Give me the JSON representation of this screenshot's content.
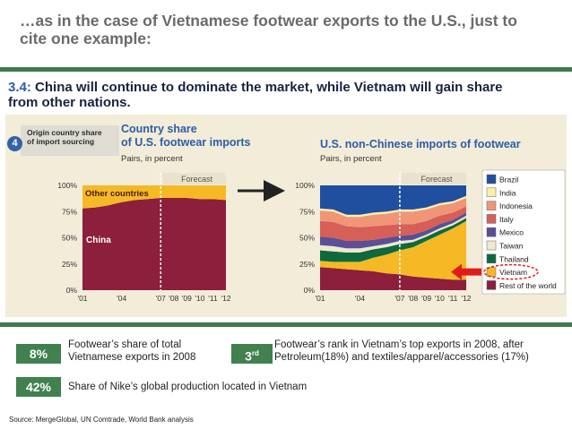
{
  "slide": {
    "title_line1": "…as in the case of Vietnamese footwear exports to the U.S., just to",
    "title_line2": "cite one example:",
    "source": "Source: MergeGlobal, UN Comtrade, World Bank analysis"
  },
  "panel": {
    "number": "3.4:",
    "title_line1": " China will continue to dominate the market, while Vietnam will gain share",
    "title_line2": "from other nations.",
    "badge_number": "4",
    "badge_text_line1": "Origin country share",
    "badge_text_line2": "of import sourcing"
  },
  "chart_data": [
    {
      "type": "area",
      "title_line1": "Country share",
      "title_line2": "of U.S. footwear imports",
      "subtitle": "Pairs, in percent",
      "forecast_label": "Forecast",
      "forecast_start": "'07",
      "x": [
        "'01",
        "'02",
        "'03",
        "'04",
        "'05",
        "'06",
        "'07",
        "'08",
        "'09",
        "'10",
        "'11",
        "'12"
      ],
      "x_tick_labels": [
        "'01",
        "'04",
        "'07",
        "'08",
        "'09",
        "'10",
        "'11",
        "'12"
      ],
      "y_tick_labels": [
        "0%",
        "25%",
        "50%",
        "75%",
        "100%"
      ],
      "ylim": [
        0,
        100
      ],
      "series": [
        {
          "name": "China",
          "values": [
            78,
            79,
            81,
            84,
            86,
            87,
            88,
            88,
            88,
            87,
            87,
            86
          ]
        },
        {
          "name": "Other countries",
          "values": [
            22,
            21,
            19,
            16,
            14,
            13,
            12,
            12,
            12,
            13,
            13,
            14
          ]
        }
      ],
      "colors": [
        "#8c1f3b",
        "#f5b925"
      ]
    },
    {
      "type": "area",
      "title": "U.S. non-Chinese imports of footwear",
      "subtitle": "Pairs, in percent",
      "forecast_label": "Forecast",
      "forecast_start": "'07",
      "x": [
        "'01",
        "'02",
        "'03",
        "'04",
        "'05",
        "'06",
        "'07",
        "'08",
        "'09",
        "'10",
        "'11",
        "'12"
      ],
      "x_tick_labels": [
        "'01",
        "'04",
        "'07",
        "'08",
        "'09",
        "'10",
        "'11",
        "'12"
      ],
      "y_tick_labels": [
        "0%",
        "25%",
        "50%",
        "75%",
        "100%"
      ],
      "ylim": [
        0,
        100
      ],
      "series": [
        {
          "name": "Rest of the world",
          "values": [
            22,
            21,
            20,
            19,
            18,
            16,
            15,
            13,
            12,
            11,
            10,
            10
          ]
        },
        {
          "name": "Vietnam",
          "values": [
            6,
            6,
            7,
            8,
            13,
            18,
            23,
            28,
            35,
            42,
            49,
            56
          ]
        },
        {
          "name": "Thailand",
          "values": [
            10,
            10,
            9,
            9,
            8,
            7,
            6,
            5,
            4,
            4,
            3,
            3
          ]
        },
        {
          "name": "Taiwan",
          "values": [
            5,
            5,
            4,
            4,
            3,
            3,
            3,
            2,
            2,
            2,
            2,
            2
          ]
        },
        {
          "name": "Mexico",
          "values": [
            8,
            8,
            7,
            7,
            6,
            6,
            5,
            5,
            4,
            4,
            3,
            3
          ]
        },
        {
          "name": "Italy",
          "values": [
            15,
            15,
            14,
            13,
            13,
            12,
            11,
            10,
            9,
            8,
            7,
            6
          ]
        },
        {
          "name": "Indonesia",
          "values": [
            10,
            10,
            9,
            10,
            11,
            11,
            12,
            12,
            11,
            10,
            9,
            8
          ]
        },
        {
          "name": "India",
          "values": [
            2,
            2,
            2,
            2,
            2,
            2,
            2,
            2,
            2,
            2,
            2,
            2
          ]
        },
        {
          "name": "Brazil",
          "values": [
            22,
            23,
            28,
            28,
            26,
            25,
            23,
            23,
            21,
            17,
            15,
            10
          ]
        }
      ],
      "colors": [
        "#8c1f3b",
        "#f5b925",
        "#0e6a3d",
        "#efe9cf",
        "#5b4f96",
        "#d65f57",
        "#f19577",
        "#fbefa9",
        "#1f4f9e"
      ],
      "highlight_series": "Vietnam"
    }
  ],
  "stats": [
    {
      "value": "8%",
      "text_line1": "Footwear’s share of total",
      "text_line2": "Vietnamese exports in 2008"
    },
    {
      "value": "3",
      "value_suffix": "rd",
      "text_line1": "Footwear’s rank in Vietnam’s top exports in 2008, after",
      "text_line2": "Petroleum(18%) and textiles/apparel/accessories (17%)"
    },
    {
      "value": "42%",
      "text_line1": "Share of Nike’s global production located in Vietnam"
    }
  ]
}
